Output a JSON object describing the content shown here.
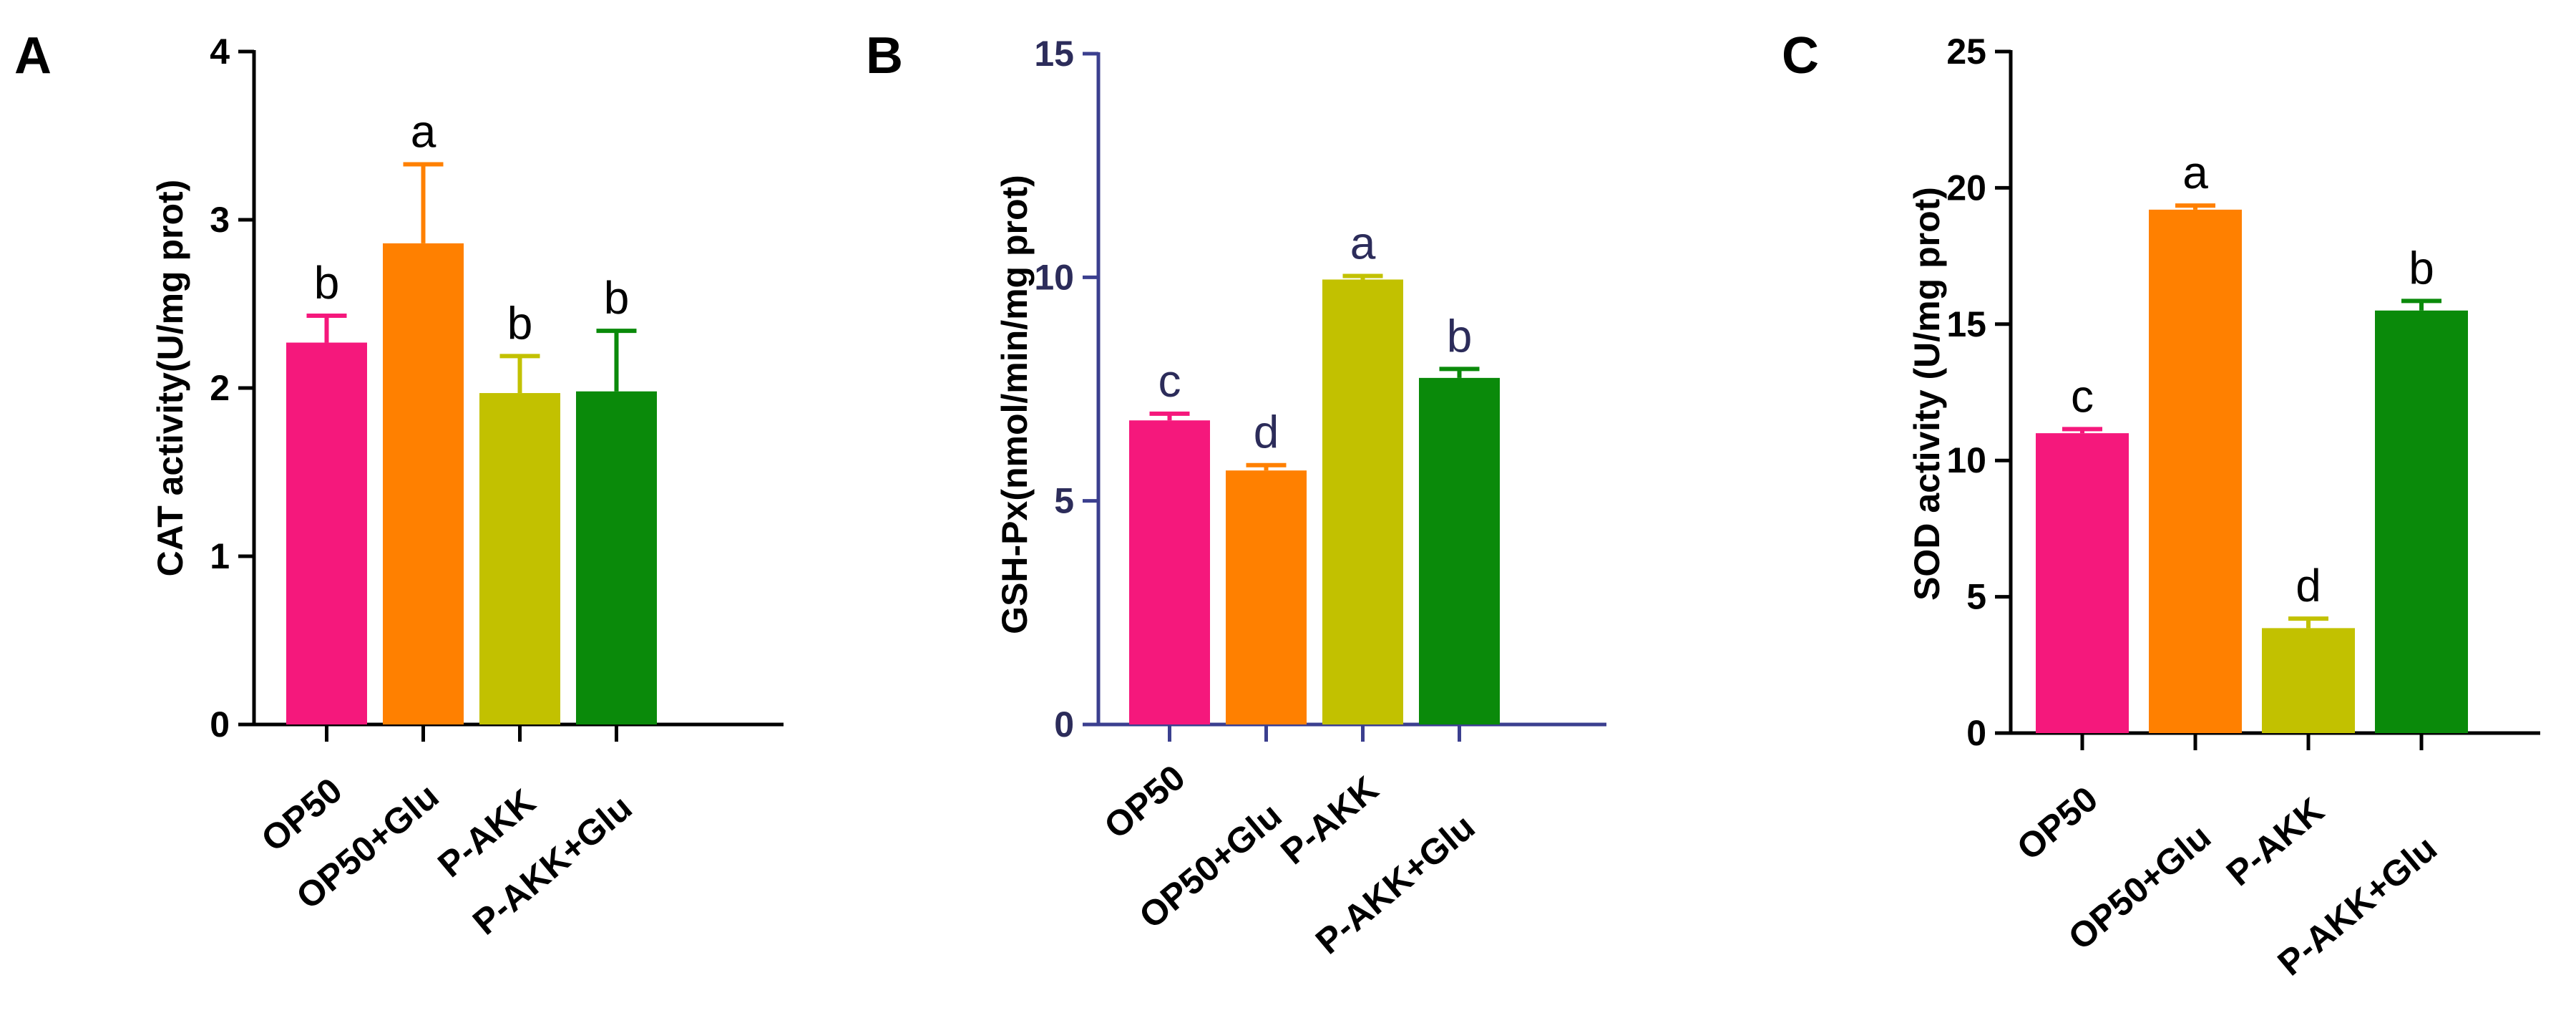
{
  "chart_data": [
    {
      "panel": "A",
      "type": "bar",
      "categories": [
        "OP50",
        "OP50+Glu",
        "P-AKK",
        "P-AKK+Glu"
      ],
      "values": [
        2.27,
        2.86,
        1.97,
        1.98
      ],
      "errors": [
        0.16,
        0.47,
        0.22,
        0.36
      ],
      "letters": [
        "b",
        "a",
        "b",
        "b"
      ],
      "ylabel": "CAT activity(U/mg prot)",
      "ylim": [
        0,
        4
      ],
      "yticks": [
        "0",
        "1",
        "2",
        "3",
        "4"
      ],
      "colors": [
        "#f5187c",
        "#ff8000",
        "#c2c100",
        "#0a8a0a"
      ],
      "axis_color": "#000000"
    },
    {
      "panel": "B",
      "type": "bar",
      "categories": [
        "OP50",
        "OP50+Glu",
        "P-AKK",
        "P-AKK+Glu"
      ],
      "values": [
        6.8,
        5.68,
        9.95,
        7.75
      ],
      "errors": [
        0.15,
        0.12,
        0.08,
        0.2
      ],
      "letters": [
        "c",
        "d",
        "a",
        "b"
      ],
      "ylabel": "GSH-Px(nmol/min/mg prot)",
      "ylim": [
        0,
        15
      ],
      "yticks": [
        "0",
        "5",
        "10",
        "15"
      ],
      "colors": [
        "#f5187c",
        "#ff8000",
        "#c2c100",
        "#0a8a0a"
      ],
      "axis_color": "#3b3f8f"
    },
    {
      "panel": "C",
      "type": "bar",
      "categories": [
        "OP50",
        "OP50+Glu",
        "P-AKK",
        "P-AKK+Glu"
      ],
      "values": [
        11.0,
        19.2,
        3.85,
        15.5
      ],
      "errors": [
        0.15,
        0.15,
        0.35,
        0.35
      ],
      "letters": [
        "c",
        "a",
        "d",
        "b"
      ],
      "ylabel": "SOD  activity (U/mg prot)",
      "ylim": [
        0,
        25
      ],
      "yticks": [
        "0",
        "5",
        "10",
        "15",
        "20",
        "25"
      ],
      "colors": [
        "#f5187c",
        "#ff8000",
        "#c2c100",
        "#0a8a0a"
      ],
      "axis_color": "#000000"
    }
  ]
}
